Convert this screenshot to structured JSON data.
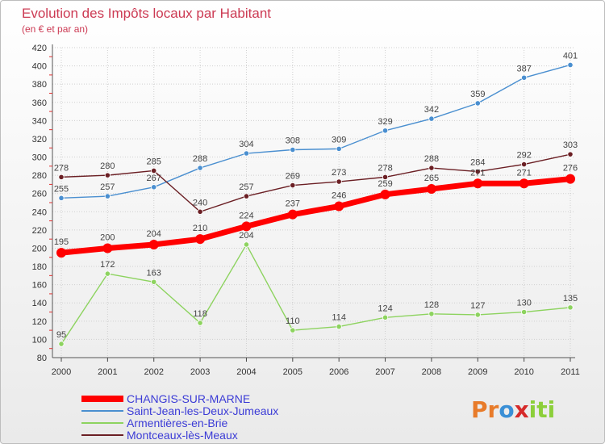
{
  "chart_data": {
    "type": "line",
    "title": "Evolution des Impôts locaux par Habitant",
    "subtitle": "(en € et par an)",
    "x": [
      "2000",
      "2001",
      "2002",
      "2003",
      "2004",
      "2005",
      "2006",
      "2007",
      "2008",
      "2009",
      "2010",
      "2011"
    ],
    "ylim": [
      80,
      420
    ],
    "yticks": [
      80,
      100,
      120,
      140,
      160,
      180,
      200,
      220,
      240,
      260,
      280,
      300,
      320,
      340,
      360,
      380,
      400,
      420
    ],
    "series": [
      {
        "name": "Saint-Jean-les-Deux-Jumeaux",
        "color": "#4a8fd0",
        "values": [
          255,
          257,
          267,
          288,
          304,
          308,
          309,
          329,
          342,
          359,
          387,
          401
        ]
      },
      {
        "name": "Armentières-en-Brie",
        "color": "#8dd35f",
        "values": [
          95,
          172,
          163,
          118,
          204,
          110,
          114,
          124,
          128,
          127,
          130,
          135
        ]
      },
      {
        "name": "Montceaux-lès-Meaux",
        "color": "#6b1f24",
        "values": [
          278,
          280,
          285,
          240,
          257,
          269,
          273,
          278,
          288,
          284,
          292,
          303
        ]
      },
      {
        "name": "CHANGIS-SUR-MARNE",
        "color": "#ff0000",
        "values": [
          195,
          200,
          204,
          210,
          224,
          237,
          246,
          259,
          265,
          271,
          271,
          276
        ]
      }
    ],
    "legend": [
      "CHANGIS-SUR-MARNE",
      "Saint-Jean-les-Deux-Jumeaux",
      "Armentières-en-Brie",
      "Montceaux-lès-Meaux"
    ]
  },
  "brand": {
    "p": "Pr",
    "o": "o",
    "x": "x",
    "i": "iti"
  }
}
